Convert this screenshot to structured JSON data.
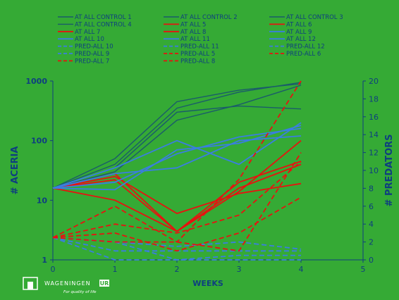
{
  "colors": {
    "background": "#35aa35",
    "axis_text": "#0e3f7f",
    "control": "#1a5c6a",
    "all": "#e8120f",
    "all_blue": "#3a7ee0",
    "pred_red": "#e8120f",
    "pred_blue": "#3a7ee0",
    "logo": "#ffffff"
  },
  "logo": {
    "wordmark": "WAGENINGEN",
    "suffix": "UR",
    "tagline": "For quality of life"
  },
  "chart_data": {
    "type": "line",
    "xlabel": "WEEKS",
    "ylabel_left": "# ACERIA",
    "ylabel_right": "# PREDATORS",
    "x_ticks": [
      "0",
      "1",
      "2",
      "3",
      "4",
      "5"
    ],
    "y_left_ticks": [
      "1",
      "10",
      "100",
      "1000"
    ],
    "y_right_ticks": [
      "0",
      "2",
      "4",
      "6",
      "8",
      "10",
      "12",
      "14",
      "16",
      "18",
      "20"
    ],
    "xlim": [
      0,
      5
    ],
    "y_left_scale": "log",
    "y_left_lim": [
      1,
      1000
    ],
    "y_right_lim": [
      0,
      20
    ],
    "x": [
      0,
      1,
      2,
      3,
      4
    ],
    "legend_columns": 3,
    "series": [
      {
        "name": "AT ALL CONTROL 1",
        "axis": "left",
        "style": "control",
        "values": [
          16,
          50,
          450,
          700,
          900
        ]
      },
      {
        "name": "AT ALL CONTROL 2",
        "axis": "left",
        "style": "control",
        "values": [
          16,
          40,
          350,
          650,
          950
        ]
      },
      {
        "name": "AT ALL CONTROL 3",
        "axis": "left",
        "style": "control",
        "values": [
          16,
          35,
          300,
          380,
          340
        ]
      },
      {
        "name": "AT ALL CONTROL 4",
        "axis": "left",
        "style": "control",
        "values": [
          16,
          30,
          220,
          400,
          850
        ]
      },
      {
        "name": "AT ALL  5",
        "axis": "left",
        "style": "all",
        "values": [
          16,
          28,
          3,
          14,
          100
        ]
      },
      {
        "name": "AT ALL  6",
        "axis": "left",
        "style": "all",
        "values": [
          16,
          25,
          6,
          13,
          19
        ]
      },
      {
        "name": "AT ALL  7",
        "axis": "left",
        "style": "all",
        "values": [
          16,
          22,
          3,
          20,
          45
        ]
      },
      {
        "name": "AT ALL   8",
        "axis": "left",
        "style": "all",
        "values": [
          16,
          10,
          3,
          16,
          40
        ]
      },
      {
        "name": "AT ALL  9",
        "axis": "left",
        "style": "all_blue",
        "values": [
          16,
          35,
          100,
          40,
          200
        ]
      },
      {
        "name": "AT ALL  10",
        "axis": "left",
        "style": "all_blue",
        "values": [
          16,
          20,
          60,
          115,
          160
        ]
      },
      {
        "name": "AT ALL  11",
        "axis": "left",
        "style": "all_blue",
        "values": [
          16,
          28,
          35,
          100,
          120
        ]
      },
      {
        "name": "AT ALL  12",
        "axis": "left",
        "style": "all_blue",
        "values": [
          16,
          15,
          70,
          90,
          180
        ]
      },
      {
        "name": "PRED-ALL 10",
        "axis": "right",
        "style": "pred_blue",
        "values": [
          2.5,
          1,
          1,
          1,
          1
        ]
      },
      {
        "name": "PRED-ALL 11",
        "axis": "right",
        "style": "pred_blue",
        "values": [
          2.5,
          0,
          0,
          0,
          0
        ]
      },
      {
        "name": "PRED-ALL 12",
        "axis": "right",
        "style": "pred_blue",
        "values": [
          2.5,
          2,
          1.5,
          2,
          1.2
        ]
      },
      {
        "name": "PRED-ALL 9",
        "axis": "right",
        "style": "pred_blue",
        "values": [
          2.5,
          2,
          0,
          0.5,
          0.5
        ]
      },
      {
        "name": "PRED-ALL 5",
        "axis": "right",
        "style": "pred_red",
        "values": [
          2.5,
          6,
          2,
          9,
          20
        ]
      },
      {
        "name": "PRED-ALL 6",
        "axis": "right",
        "style": "pred_red",
        "values": [
          2.5,
          4,
          3,
          5,
          11
        ]
      },
      {
        "name": "PRED-ALL 7",
        "axis": "right",
        "style": "pred_red",
        "values": [
          2.5,
          3,
          1,
          3,
          7
        ]
      },
      {
        "name": "PRED-ALL 8",
        "axis": "right",
        "style": "pred_red",
        "values": [
          2.5,
          2,
          2,
          1,
          12
        ]
      }
    ]
  }
}
